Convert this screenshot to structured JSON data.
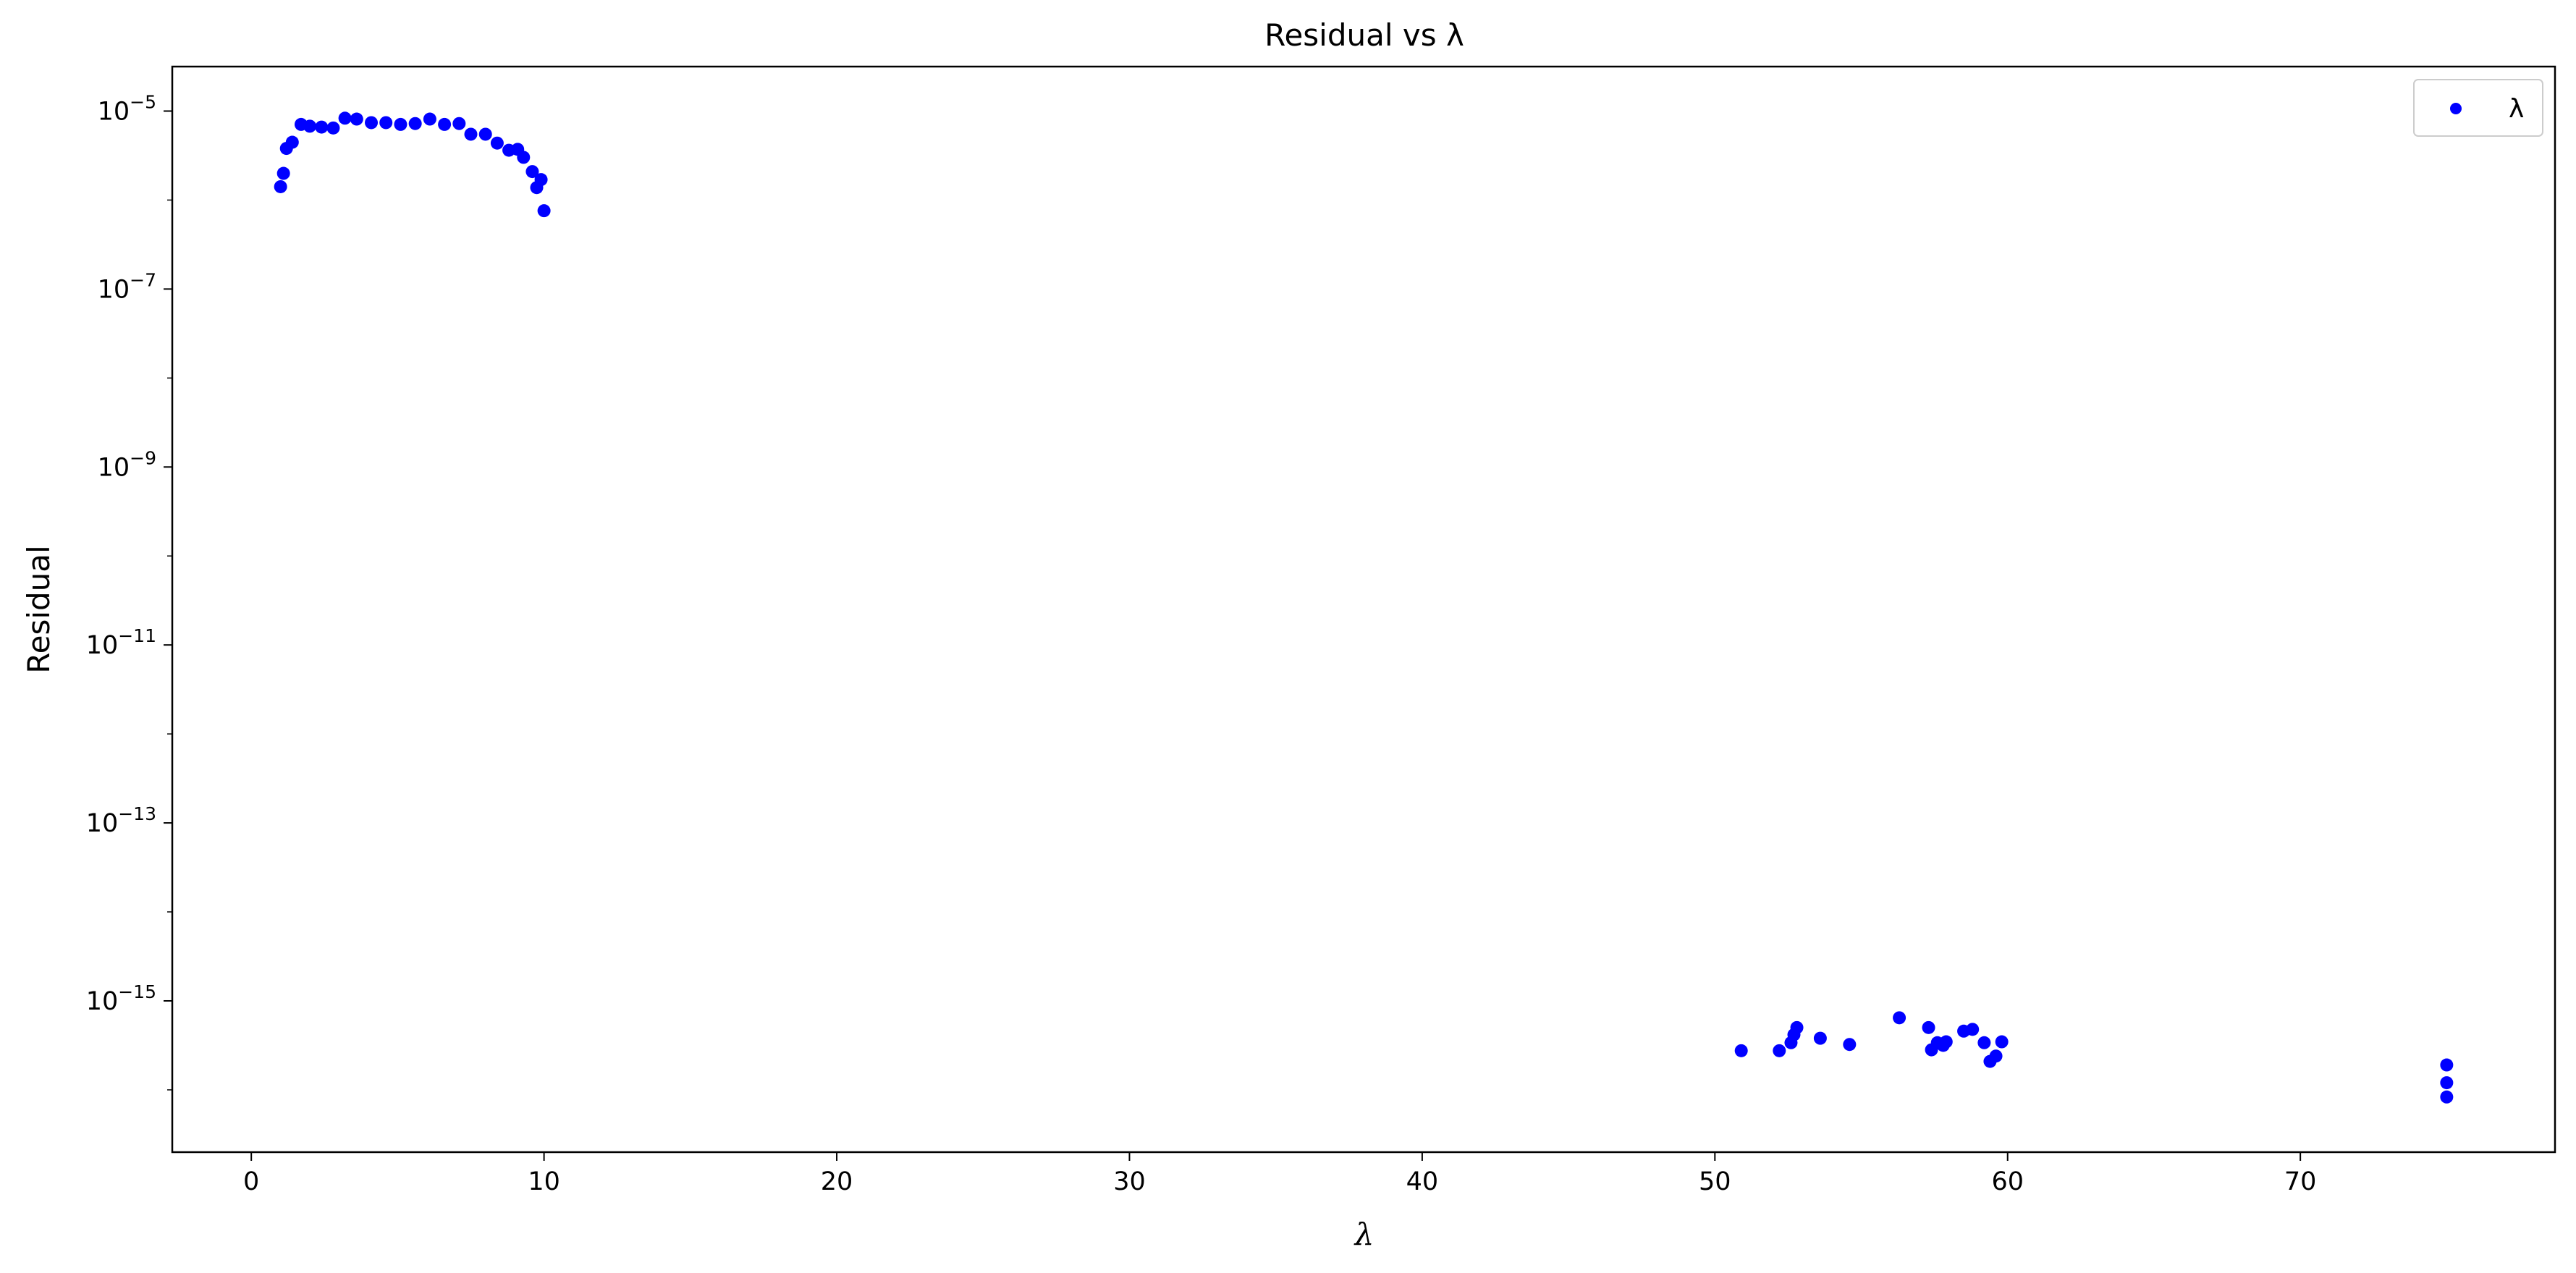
{
  "chart_data": {
    "type": "scatter",
    "title": "Residual vs λ",
    "xlabel": "λ",
    "ylabel": "Residual",
    "xlim": [
      -2.7,
      78.7
    ],
    "ylim_log10": [
      -16.7,
      -4.5
    ],
    "yscale": "log",
    "xticks": [
      0,
      10,
      20,
      30,
      40,
      50,
      60,
      70
    ],
    "yticks": [
      {
        "mantissa": "10",
        "exponent": "−5",
        "value": -5
      },
      {
        "mantissa": "10",
        "exponent": "−7",
        "value": -7
      },
      {
        "mantissa": "10",
        "exponent": "−9",
        "value": -9
      },
      {
        "mantissa": "10",
        "exponent": "−11",
        "value": -11
      },
      {
        "mantissa": "10",
        "exponent": "−13",
        "value": -13
      },
      {
        "mantissa": "10",
        "exponent": "−15",
        "value": -15
      }
    ],
    "legend": {
      "position": "top-right",
      "entries": [
        "λ"
      ]
    },
    "grid": false,
    "series": [
      {
        "name": "λ",
        "color": "#0000ff",
        "marker": "circle",
        "x": [
          1.0,
          1.1,
          1.2,
          1.4,
          1.7,
          2.0,
          2.4,
          2.8,
          3.2,
          3.6,
          4.1,
          4.6,
          5.1,
          5.6,
          6.1,
          6.6,
          7.1,
          7.5,
          8.0,
          8.4,
          8.8,
          9.1,
          9.3,
          9.6,
          9.75,
          9.9,
          10.0,
          50.9,
          52.2,
          52.6,
          52.7,
          52.8,
          53.6,
          54.6,
          56.3,
          57.3,
          57.4,
          57.6,
          57.8,
          57.9,
          58.5,
          58.8,
          59.2,
          59.4,
          59.6,
          59.8,
          75.0,
          75.0,
          75.0
        ],
        "y_log10": [
          -5.85,
          -5.7,
          -5.42,
          -5.35,
          -5.15,
          -5.17,
          -5.18,
          -5.19,
          -5.08,
          -5.09,
          -5.13,
          -5.13,
          -5.15,
          -5.14,
          -5.09,
          -5.15,
          -5.14,
          -5.26,
          -5.26,
          -5.36,
          -5.44,
          -5.43,
          -5.52,
          -5.68,
          -5.86,
          -5.77,
          -6.12,
          -15.56,
          -15.56,
          -15.47,
          -15.38,
          -15.3,
          -15.42,
          -15.49,
          -15.19,
          -15.3,
          -15.55,
          -15.47,
          -15.5,
          -15.46,
          -15.34,
          -15.32,
          -15.47,
          -15.68,
          -15.62,
          -15.46,
          -15.72,
          -15.92,
          -16.08
        ]
      }
    ]
  }
}
